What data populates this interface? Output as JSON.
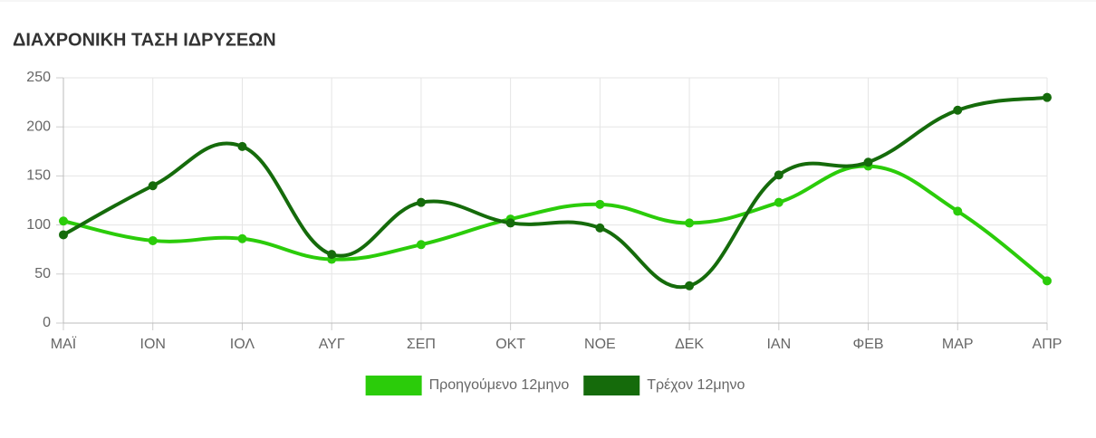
{
  "chart_data": {
    "type": "line",
    "title": "ΔΙΑΧΡΟΝΙΚΗ ΤΑΣΗ ΙΔΡΥΣΕΩΝ",
    "categories": [
      "ΜΑΪ",
      "ΙΟΝ",
      "ΙΟΛ",
      "ΑΥΓ",
      "ΣΕΠ",
      "ΟΚΤ",
      "ΝΟΕ",
      "ΔΕΚ",
      "ΙΑΝ",
      "ΦΕΒ",
      "ΜΑΡ",
      "ΑΠΡ"
    ],
    "series": [
      {
        "name": "Προηγούμενο 12μηνο",
        "color": "#2bcc0a",
        "values": [
          104,
          84,
          86,
          65,
          80,
          106,
          121,
          102,
          123,
          160,
          114,
          43
        ]
      },
      {
        "name": "Τρέχον 12μηνο",
        "color": "#156b0b",
        "values": [
          90,
          140,
          180,
          70,
          123,
          102,
          97,
          38,
          151,
          164,
          217,
          230
        ]
      }
    ],
    "ylim": [
      0,
      250
    ],
    "yticks": [
      0,
      50,
      100,
      150,
      200,
      250
    ],
    "grid": true,
    "legend": "bottom"
  }
}
